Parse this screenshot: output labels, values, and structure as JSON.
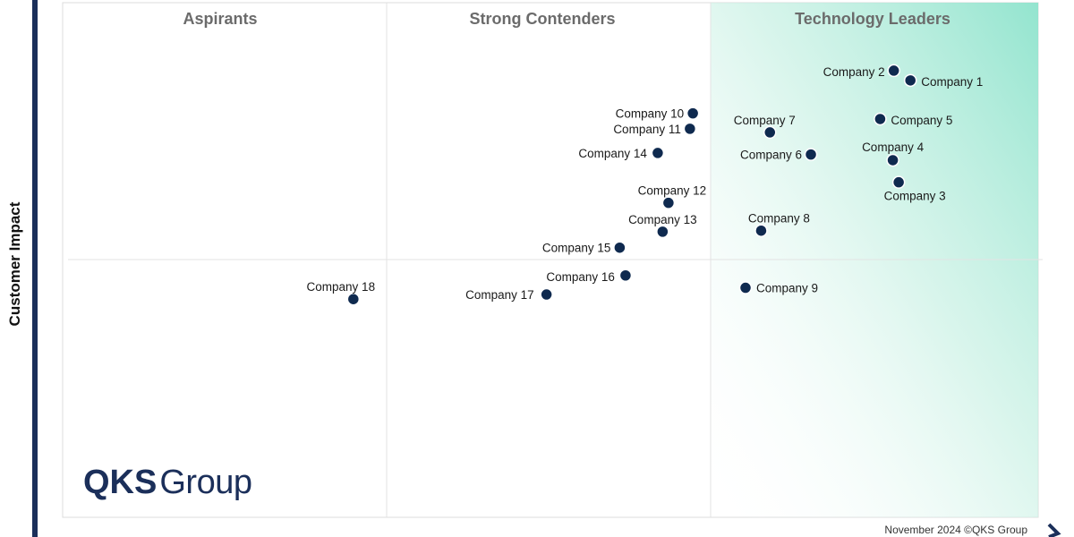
{
  "chart_data": {
    "type": "scatter",
    "title": "",
    "ylabel": "Customer Impact",
    "xlabel": "",
    "xlim": [
      0,
      100
    ],
    "ylim": [
      0,
      100
    ],
    "quadrants": [
      "Aspirants",
      "Strong Contenders",
      "Technology Leaders"
    ],
    "points": [
      {
        "name": "Company 1",
        "x": 86.9,
        "y": 84.9
      },
      {
        "name": "Company 2",
        "x": 85.2,
        "y": 86.8
      },
      {
        "name": "Company 3",
        "x": 85.7,
        "y": 65.1
      },
      {
        "name": "Company 4",
        "x": 85.1,
        "y": 69.4
      },
      {
        "name": "Company 5",
        "x": 83.8,
        "y": 77.4
      },
      {
        "name": "Company 6",
        "x": 76.7,
        "y": 70.5
      },
      {
        "name": "Company 7",
        "x": 72.5,
        "y": 74.8
      },
      {
        "name": "Company 8",
        "x": 71.6,
        "y": 55.7
      },
      {
        "name": "Company 9",
        "x": 70.0,
        "y": 44.6
      },
      {
        "name": "Company 10",
        "x": 64.6,
        "y": 78.5
      },
      {
        "name": "Company 11",
        "x": 64.3,
        "y": 75.5
      },
      {
        "name": "Company 12",
        "x": 62.1,
        "y": 61.1
      },
      {
        "name": "Company 13",
        "x": 61.5,
        "y": 55.5
      },
      {
        "name": "Company 14",
        "x": 61.0,
        "y": 70.8
      },
      {
        "name": "Company 15",
        "x": 57.1,
        "y": 52.4
      },
      {
        "name": "Company 16",
        "x": 57.7,
        "y": 47.0
      },
      {
        "name": "Company 17",
        "x": 49.6,
        "y": 43.3
      },
      {
        "name": "Company 18",
        "x": 29.8,
        "y": 42.4
      }
    ]
  },
  "branding": {
    "logo_bold": "QKS",
    "logo_light": "Group"
  },
  "footer": {
    "text": "November 2024 ©QKS Group"
  },
  "colors": {
    "point": "#0f2a4f",
    "accent": "#8de3cc",
    "axis": "#1b2f5a"
  }
}
